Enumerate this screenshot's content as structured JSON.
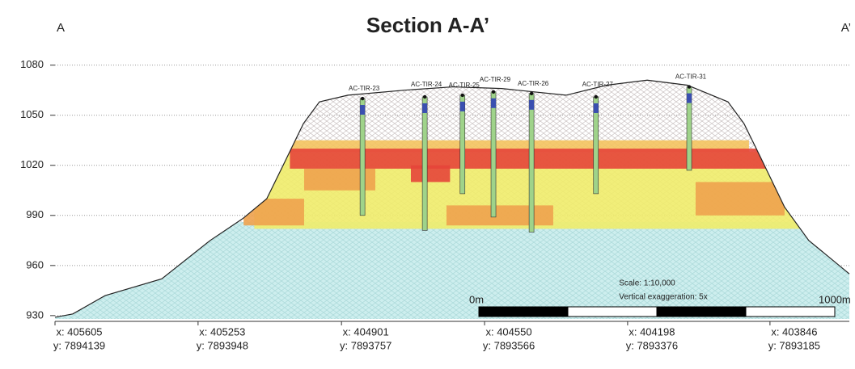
{
  "chart_data": {
    "type": "section",
    "title": "Section A-A’",
    "start_label": "A",
    "end_label": "A’",
    "xlim": [
      0,
      2232
    ],
    "ylim": [
      928,
      1090
    ],
    "yticks": [
      930,
      960,
      990,
      1020,
      1050,
      1080
    ],
    "grid": true,
    "coordinates": [
      {
        "distance": 0,
        "x": "x: 405605",
        "y": "y: 7894139"
      },
      {
        "distance": 402,
        "x": "x: 405253",
        "y": "y: 7893948"
      },
      {
        "distance": 805,
        "x": "x: 404901",
        "y": "y: 7893757"
      },
      {
        "distance": 1207,
        "x": "x: 404550",
        "y": "y: 7893566"
      },
      {
        "distance": 1609,
        "x": "x: 404198",
        "y": "y: 7893376"
      },
      {
        "distance": 2009,
        "x": "x: 403846",
        "y": "y: 7893185"
      }
    ],
    "profile": {
      "x": [
        0,
        50,
        141,
        300,
        436,
        527,
        595,
        641,
        698,
        743,
        823,
        982,
        1118,
        1255,
        1436,
        1550,
        1664,
        1777,
        1891,
        1936,
        1982,
        2050,
        2118,
        2232
      ],
      "elevation": [
        929,
        931,
        942,
        952,
        975,
        988,
        1000,
        1020,
        1045,
        1058,
        1062,
        1065,
        1067,
        1066,
        1062,
        1068,
        1071,
        1068,
        1058,
        1045,
        1025,
        995,
        975,
        955
      ]
    },
    "base_elevation": 986,
    "grade_blocks": [
      {
        "x": [
          560,
          2130
        ],
        "elevation": [
          982,
          1028
        ],
        "color": "#f0ec6a"
      },
      {
        "x": [
          530,
          700
        ],
        "elevation": [
          984,
          1000
        ],
        "color": "#eea24e"
      },
      {
        "x": [
          1100,
          1400
        ],
        "elevation": [
          984,
          996
        ],
        "color": "#eea24e"
      },
      {
        "x": [
          1800,
          2050
        ],
        "elevation": [
          990,
          1010
        ],
        "color": "#eea24e"
      },
      {
        "x": [
          700,
          900
        ],
        "elevation": [
          1005,
          1018
        ],
        "color": "#eea24e"
      },
      {
        "x": [
          650,
          1950
        ],
        "elevation": [
          1028,
          1035
        ],
        "color": "#f4c35e"
      },
      {
        "x": [
          660,
          2000
        ],
        "elevation": [
          1018,
          1030
        ],
        "color": "#e6453a"
      },
      {
        "x": [
          1000,
          1110
        ],
        "elevation": [
          1010,
          1020
        ],
        "color": "#e6453a"
      }
    ],
    "drillholes": [
      {
        "name": "AC-TIR-23",
        "x": 864,
        "collar": 1060,
        "bottom": 990
      },
      {
        "name": "AC-TIR-24",
        "x": 1039,
        "collar": 1061,
        "bottom": 981
      },
      {
        "name": "AC-TIR-25",
        "x": 1145,
        "collar": 1062,
        "bottom": 1003
      },
      {
        "name": "AC-TIR-29",
        "x": 1232,
        "collar": 1064,
        "bottom": 989
      },
      {
        "name": "AC-TIR-26",
        "x": 1339,
        "collar": 1063,
        "bottom": 980
      },
      {
        "name": "AC-TIR-27",
        "x": 1520,
        "collar": 1061,
        "bottom": 1003
      },
      {
        "name": "AC-TIR-31",
        "x": 1782,
        "collar": 1067,
        "bottom": 1017
      }
    ],
    "scale_text": "Scale:  1:10,000",
    "exaggeration_text": "Vertical exaggeration: 5x",
    "scale_start": "0m",
    "scale_end": "1000m"
  }
}
